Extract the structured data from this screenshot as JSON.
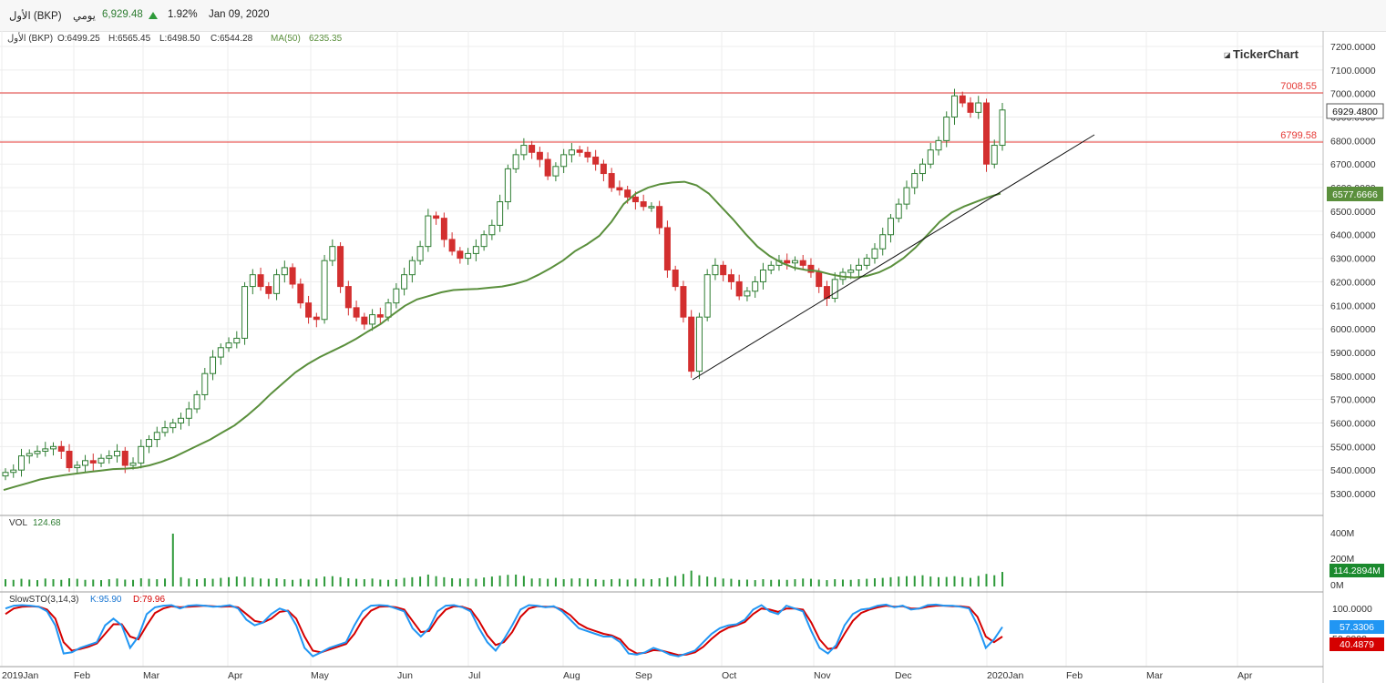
{
  "header": {
    "symbol_name": "الأول (BKP)",
    "period": "يومي",
    "last_price": "6,929.48",
    "change_percent": "1.92%",
    "date": "Jan 09, 2020"
  },
  "ohlc_bar": {
    "symbol": "الأول (BKP)",
    "open": "O:6499.25",
    "high": "H:6565.45",
    "low": "L:6498.50",
    "close": "C:6544.28",
    "ma_label": "MA(50)",
    "ma_value": "6235.35"
  },
  "watermark": "TickerChart",
  "colors": {
    "up": "#2e7d32",
    "down": "#d32f2f",
    "ma": "#5a8f3c",
    "level": "#e53935",
    "stoch_k": "#2196f3",
    "stoch_d": "#d50000"
  },
  "chart_data": [
    {
      "type": "candlestick",
      "x_ticks": [
        "2019Jan",
        "Feb",
        "Mar",
        "Apr",
        "May",
        "Jun",
        "Jul",
        "Aug",
        "Sep",
        "Oct",
        "Nov",
        "Dec",
        "2020Jan",
        "Feb",
        "Mar",
        "Apr"
      ],
      "y_ticks": [
        "7200.0000",
        "7100.0000",
        "7000.0000",
        "6900.0000",
        "6800.0000",
        "6700.0000",
        "6600.0000",
        "6500.0000",
        "6400.0000",
        "6300.0000",
        "6200.0000",
        "6100.0000",
        "6000.0000",
        "5900.0000",
        "5800.0000",
        "5700.0000",
        "5600.0000",
        "5500.0000",
        "5400.0000",
        "5300.0000"
      ],
      "ylim": [
        5230,
        7270
      ],
      "close_series": [
        5390,
        5400,
        5460,
        5470,
        5480,
        5490,
        5500,
        5480,
        5410,
        5420,
        5440,
        5430,
        5450,
        5460,
        5480,
        5420,
        5430,
        5500,
        5530,
        5560,
        5580,
        5600,
        5620,
        5660,
        5720,
        5810,
        5880,
        5920,
        5940,
        5960,
        6180,
        6230,
        6180,
        6150,
        6230,
        6260,
        6190,
        6110,
        6050,
        6040,
        6290,
        6350,
        6180,
        6090,
        6050,
        6020,
        6060,
        6050,
        6110,
        6170,
        6230,
        6290,
        6350,
        6480,
        6470,
        6380,
        6330,
        6300,
        6320,
        6350,
        6400,
        6440,
        6540,
        6680,
        6740,
        6780,
        6750,
        6720,
        6650,
        6690,
        6740,
        6760,
        6750,
        6730,
        6700,
        6660,
        6600,
        6590,
        6560,
        6540,
        6520,
        6520,
        6430,
        6250,
        6180,
        6050,
        5820,
        6050,
        6230,
        6270,
        6230,
        6200,
        6140,
        6160,
        6200,
        6250,
        6270,
        6290,
        6280,
        6290,
        6270,
        6240,
        6180,
        6130,
        6210,
        6240,
        6250,
        6270,
        6300,
        6340,
        6400,
        6470,
        6530,
        6600,
        6660,
        6700,
        6760,
        6800,
        6900,
        6990,
        6960,
        6920,
        6960,
        6700,
        6780,
        6930
      ],
      "horizontal_levels": [
        "7008.55",
        "6799.58"
      ],
      "last_price_tag": "6929.4800",
      "ma_tag": "6577.6666",
      "ma_series": [
        5315,
        5330,
        5345,
        5360,
        5370,
        5378,
        5385,
        5392,
        5398,
        5404,
        5406,
        5410,
        5420,
        5435,
        5455,
        5480,
        5505,
        5530,
        5560,
        5590,
        5630,
        5675,
        5725,
        5770,
        5815,
        5850,
        5880,
        5905,
        5930,
        5958,
        5990,
        6020,
        6060,
        6098,
        6125,
        6140,
        6155,
        6165,
        6168,
        6170,
        6175,
        6180,
        6190,
        6205,
        6230,
        6258,
        6290,
        6330,
        6360,
        6395,
        6455,
        6530,
        6575,
        6600,
        6615,
        6622,
        6625,
        6610,
        6575,
        6520,
        6465,
        6405,
        6350,
        6310,
        6280,
        6260,
        6250,
        6245,
        6232,
        6222,
        6218,
        6225,
        6240,
        6265,
        6300,
        6345,
        6400,
        6455,
        6495,
        6520,
        6540,
        6560,
        6575
      ]
    },
    {
      "type": "bar",
      "label": "VOL",
      "label_value": "124.68",
      "y_ticks": [
        "400M",
        "200M",
        "0M"
      ],
      "ylim": [
        0,
        420
      ],
      "last_tag": "114.2894M",
      "values": [
        55,
        50,
        58,
        52,
        48,
        60,
        55,
        50,
        62,
        58,
        50,
        52,
        48,
        55,
        60,
        52,
        50,
        62,
        58,
        55,
        60,
        400,
        70,
        60,
        55,
        62,
        58,
        65,
        70,
        75,
        72,
        68,
        60,
        58,
        62,
        55,
        50,
        58,
        52,
        60,
        75,
        78,
        70,
        62,
        58,
        55,
        60,
        52,
        50,
        55,
        65,
        70,
        75,
        90,
        78,
        70,
        62,
        60,
        62,
        58,
        68,
        75,
        82,
        88,
        90,
        80,
        60,
        62,
        58,
        65,
        55,
        60,
        62,
        58,
        55,
        50,
        55,
        58,
        52,
        60,
        58,
        55,
        62,
        70,
        80,
        95,
        120,
        85,
        75,
        70,
        60,
        58,
        50,
        52,
        48,
        55,
        50,
        52,
        50,
        55,
        60,
        58,
        52,
        48,
        55,
        52,
        50,
        55,
        58,
        62,
        65,
        70,
        75,
        78,
        80,
        85,
        75,
        70,
        72,
        78,
        70,
        65,
        80,
        95,
        85,
        110
      ]
    },
    {
      "type": "line",
      "label": "SlowSTO(3,14,3)",
      "k_label": "K:95.90",
      "d_label": "D:79.96",
      "y_ticks": [
        "100.0000",
        "50.0000"
      ],
      "ylim": [
        -10,
        110
      ],
      "k_tag": "57.3306",
      "d_tag": "40.4879",
      "k_series": [
        90,
        95,
        96,
        95,
        93,
        85,
        60,
        10,
        12,
        20,
        25,
        30,
        60,
        72,
        60,
        20,
        40,
        80,
        92,
        95,
        96,
        90,
        95,
        96,
        95,
        93,
        94,
        96,
        90,
        70,
        60,
        65,
        80,
        90,
        85,
        60,
        20,
        5,
        12,
        20,
        25,
        30,
        60,
        85,
        95,
        96,
        95,
        90,
        85,
        55,
        40,
        55,
        85,
        95,
        96,
        92,
        85,
        55,
        30,
        15,
        35,
        60,
        88,
        96,
        95,
        92,
        94,
        85,
        70,
        55,
        50,
        45,
        40,
        40,
        30,
        10,
        8,
        12,
        20,
        15,
        8,
        5,
        10,
        15,
        30,
        45,
        55,
        60,
        62,
        70,
        88,
        96,
        85,
        80,
        95,
        90,
        85,
        50,
        20,
        10,
        25,
        60,
        80,
        88,
        90,
        95,
        97,
        92,
        95,
        88,
        90,
        96,
        97,
        95,
        95,
        93,
        90,
        60,
        20,
        35,
        57
      ],
      "d_series": [
        80,
        90,
        93,
        94,
        93,
        88,
        72,
        30,
        15,
        18,
        22,
        28,
        45,
        62,
        62,
        40,
        35,
        60,
        82,
        90,
        94,
        92,
        93,
        94,
        95,
        94,
        93,
        94,
        92,
        80,
        68,
        65,
        72,
        84,
        86,
        72,
        40,
        15,
        12,
        17,
        22,
        27,
        45,
        70,
        86,
        93,
        94,
        92,
        88,
        68,
        48,
        50,
        72,
        88,
        94,
        93,
        88,
        68,
        42,
        25,
        30,
        48,
        75,
        90,
        94,
        93,
        93,
        88,
        78,
        63,
        55,
        50,
        45,
        42,
        35,
        18,
        10,
        11,
        16,
        15,
        11,
        7,
        8,
        12,
        22,
        36,
        48,
        56,
        60,
        66,
        80,
        90,
        88,
        84,
        90,
        90,
        88,
        65,
        35,
        18,
        20,
        45,
        68,
        82,
        88,
        92,
        95,
        93,
        94,
        90,
        90,
        93,
        95,
        95,
        94,
        94,
        92,
        75,
        40,
        30,
        40
      ]
    }
  ]
}
